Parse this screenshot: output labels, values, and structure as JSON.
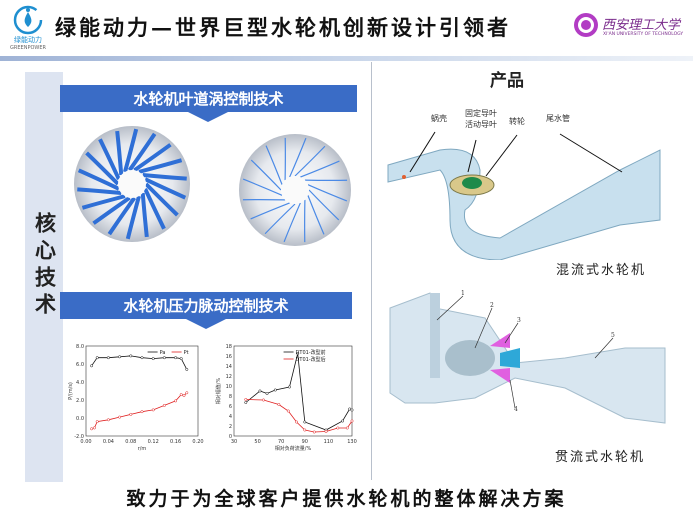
{
  "header": {
    "title": "绿能动力—世界巨型水轮机创新设计引领者",
    "logo": {
      "name": "绿能动力",
      "sub": "GREENPOWER"
    },
    "university": {
      "name": "西安理工大学",
      "sub": "XI'AN UNIVERSITY OF TECHNOLOGY"
    }
  },
  "left": {
    "section_label": "核心技术",
    "tech1": "水轮机叶道涡控制技术",
    "tech2": "水轮机压力脉动控制技术"
  },
  "right": {
    "title": "产品",
    "mixed_flow": {
      "caption": "混流式水轮机",
      "labels": [
        "蜗壳",
        "固定导叶",
        "活动导叶",
        "转轮",
        "尾水管"
      ]
    },
    "tubular": {
      "caption": "贯流式水轮机",
      "labels": [
        "1",
        "2",
        "3",
        "4",
        "5"
      ]
    }
  },
  "footer": {
    "slogan": "致力于为全球客户提供水轮机的整体解决方案"
  },
  "colors": {
    "ribbon": "#3a6cc6",
    "sidebar": "#dde4f1",
    "series_black": "#111111",
    "series_red": "#e02020"
  },
  "chart_data": [
    {
      "type": "line",
      "xlabel": "r/m",
      "ylabel": "P/(m/s)",
      "xlim": [
        0,
        0.2
      ],
      "ylim": [
        -2,
        8
      ],
      "xticks": [
        "0.00",
        "0.04",
        "0.08",
        "0.12",
        "0.16",
        "0.20"
      ],
      "yticks": [
        "-2.0",
        "0.0",
        "2.0",
        "4.0",
        "6.0",
        "8.0"
      ],
      "legend": "top-right",
      "series": [
        {
          "name": "Pa",
          "color": "#111111",
          "points": [
            [
              0.01,
              5.8
            ],
            [
              0.02,
              6.7
            ],
            [
              0.04,
              6.7
            ],
            [
              0.06,
              6.8
            ],
            [
              0.08,
              6.9
            ],
            [
              0.1,
              6.7
            ],
            [
              0.12,
              6.6
            ],
            [
              0.14,
              6.7
            ],
            [
              0.16,
              6.7
            ],
            [
              0.17,
              6.6
            ],
            [
              0.18,
              5.4
            ]
          ]
        },
        {
          "name": "Pt",
          "color": "#e02020",
          "points": [
            [
              0.01,
              -1.2
            ],
            [
              0.015,
              -1.1
            ],
            [
              0.02,
              -0.4
            ],
            [
              0.04,
              -0.2
            ],
            [
              0.06,
              0.1
            ],
            [
              0.08,
              0.4
            ],
            [
              0.1,
              0.7
            ],
            [
              0.12,
              0.9
            ],
            [
              0.14,
              1.4
            ],
            [
              0.16,
              1.9
            ],
            [
              0.17,
              2.6
            ],
            [
              0.175,
              2.5
            ],
            [
              0.18,
              2.8
            ]
          ]
        }
      ]
    },
    {
      "type": "line",
      "xlabel": "相对负荷流量/%",
      "ylabel": "相对幅值/%",
      "xlim": [
        30,
        130
      ],
      "ylim": [
        0,
        18
      ],
      "xticks": [
        "30",
        "50",
        "70",
        "90",
        "110",
        "130"
      ],
      "yticks": [
        "0",
        "2",
        "4",
        "6",
        "8",
        "10",
        "12",
        "14",
        "16",
        "18"
      ],
      "legend": "top-right",
      "series": [
        {
          "name": "DT01-改型前",
          "color": "#111111",
          "points": [
            [
              40,
              6.7
            ],
            [
              52,
              9
            ],
            [
              58,
              8.5
            ],
            [
              65,
              9.2
            ],
            [
              77,
              9.8
            ],
            [
              84,
              16.5
            ],
            [
              90,
              2.8
            ],
            [
              108,
              1.2
            ],
            [
              122,
              3
            ],
            [
              128,
              5.4
            ],
            [
              130,
              5.2
            ]
          ]
        },
        {
          "name": "DT01-改型后",
          "color": "#e02020",
          "points": [
            [
              40,
              7.3
            ],
            [
              55,
              7.2
            ],
            [
              68,
              6.3
            ],
            [
              76,
              5
            ],
            [
              83,
              2.8
            ],
            [
              90,
              1.2
            ],
            [
              98,
              0.8
            ],
            [
              108,
              0.9
            ],
            [
              118,
              1.6
            ],
            [
              126,
              1.6
            ],
            [
              130,
              3
            ]
          ]
        }
      ]
    }
  ]
}
